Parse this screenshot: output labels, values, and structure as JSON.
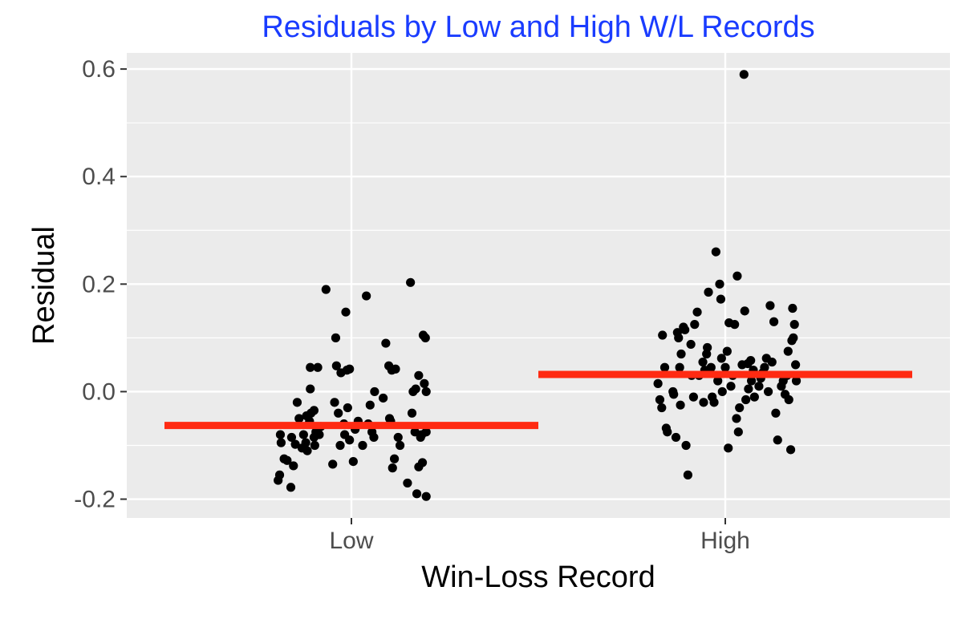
{
  "chart_data": {
    "type": "scatter",
    "title": "Residuals by Low and High W/L Records",
    "xlabel": "Win-Loss Record",
    "ylabel": "Residual",
    "categories": [
      "Low",
      "High"
    ],
    "ylim": [
      -0.235,
      0.63
    ],
    "y_ticks": [
      -0.2,
      0.0,
      0.2,
      0.4,
      0.6
    ],
    "y_tick_labels": [
      "-0.2",
      "0.0",
      "0.2",
      "0.4",
      "0.6"
    ],
    "grid": true,
    "colors": {
      "panel": "#ebebeb",
      "grid": "#ffffff",
      "point": "#000000",
      "mean_line": "#ff2a12",
      "title": "#1a3cff"
    },
    "series": [
      {
        "category": "Low",
        "points": [
          {
            "x": -0.196,
            "y": -0.165
          },
          {
            "x": -0.192,
            "y": -0.155
          },
          {
            "x": -0.19,
            "y": -0.08
          },
          {
            "x": -0.188,
            "y": -0.095
          },
          {
            "x": -0.18,
            "y": -0.125
          },
          {
            "x": -0.172,
            "y": -0.128
          },
          {
            "x": -0.162,
            "y": -0.178
          },
          {
            "x": -0.155,
            "y": -0.138
          },
          {
            "x": -0.16,
            "y": -0.085
          },
          {
            "x": -0.15,
            "y": -0.098
          },
          {
            "x": -0.145,
            "y": -0.02
          },
          {
            "x": -0.14,
            "y": -0.05
          },
          {
            "x": -0.132,
            "y": -0.105
          },
          {
            "x": -0.128,
            "y": -0.08
          },
          {
            "x": -0.122,
            "y": -0.095
          },
          {
            "x": -0.118,
            "y": -0.11
          },
          {
            "x": -0.12,
            "y": -0.045
          },
          {
            "x": -0.112,
            "y": -0.055
          },
          {
            "x": -0.11,
            "y": 0.005
          },
          {
            "x": -0.108,
            "y": -0.04
          },
          {
            "x": -0.11,
            "y": 0.045
          },
          {
            "x": -0.1,
            "y": -0.035
          },
          {
            "x": -0.1,
            "y": -0.085
          },
          {
            "x": -0.098,
            "y": -0.1
          },
          {
            "x": -0.095,
            "y": -0.075
          },
          {
            "x": -0.09,
            "y": 0.045
          },
          {
            "x": -0.086,
            "y": -0.08
          },
          {
            "x": -0.082,
            "y": -0.065
          },
          {
            "x": -0.068,
            "y": 0.19
          },
          {
            "x": -0.05,
            "y": -0.135
          },
          {
            "x": -0.045,
            "y": -0.02
          },
          {
            "x": -0.042,
            "y": 0.1
          },
          {
            "x": -0.04,
            "y": 0.048
          },
          {
            "x": -0.035,
            "y": -0.04
          },
          {
            "x": -0.03,
            "y": -0.1
          },
          {
            "x": -0.028,
            "y": 0.035
          },
          {
            "x": -0.02,
            "y": -0.06
          },
          {
            "x": -0.018,
            "y": -0.08
          },
          {
            "x": -0.015,
            "y": 0.148
          },
          {
            "x": -0.012,
            "y": 0.04
          },
          {
            "x": -0.01,
            "y": -0.03
          },
          {
            "x": -0.005,
            "y": 0.042
          },
          {
            "x": -0.005,
            "y": -0.09
          },
          {
            "x": 0.005,
            "y": -0.13
          },
          {
            "x": 0.01,
            "y": -0.07
          },
          {
            "x": 0.018,
            "y": -0.055
          },
          {
            "x": 0.03,
            "y": -0.1
          },
          {
            "x": 0.04,
            "y": 0.178
          },
          {
            "x": 0.045,
            "y": -0.06
          },
          {
            "x": 0.05,
            "y": -0.025
          },
          {
            "x": 0.055,
            "y": -0.075
          },
          {
            "x": 0.06,
            "y": -0.085
          },
          {
            "x": 0.062,
            "y": 0.0
          },
          {
            "x": 0.085,
            "y": -0.012
          },
          {
            "x": 0.092,
            "y": 0.09
          },
          {
            "x": 0.1,
            "y": 0.048
          },
          {
            "x": 0.102,
            "y": -0.05
          },
          {
            "x": 0.105,
            "y": -0.055
          },
          {
            "x": 0.108,
            "y": 0.04
          },
          {
            "x": 0.11,
            "y": -0.142
          },
          {
            "x": 0.115,
            "y": -0.125
          },
          {
            "x": 0.118,
            "y": 0.042
          },
          {
            "x": 0.125,
            "y": -0.085
          },
          {
            "x": 0.13,
            "y": -0.1
          },
          {
            "x": 0.15,
            "y": -0.17
          },
          {
            "x": 0.158,
            "y": 0.203
          },
          {
            "x": 0.162,
            "y": -0.04
          },
          {
            "x": 0.165,
            "y": 0.0
          },
          {
            "x": 0.17,
            "y": -0.075
          },
          {
            "x": 0.172,
            "y": 0.005
          },
          {
            "x": 0.175,
            "y": -0.19
          },
          {
            "x": 0.18,
            "y": 0.03
          },
          {
            "x": 0.18,
            "y": -0.14
          },
          {
            "x": 0.185,
            "y": -0.085
          },
          {
            "x": 0.188,
            "y": -0.08
          },
          {
            "x": 0.19,
            "y": -0.132
          },
          {
            "x": 0.192,
            "y": 0.105
          },
          {
            "x": 0.195,
            "y": 0.015
          },
          {
            "x": 0.198,
            "y": 0.1
          },
          {
            "x": 0.2,
            "y": -0.195
          },
          {
            "x": 0.2,
            "y": 0.0
          },
          {
            "x": 0.2,
            "y": -0.075
          }
        ]
      },
      {
        "category": "High",
        "points": [
          {
            "x": -0.18,
            "y": 0.015
          },
          {
            "x": -0.175,
            "y": -0.015
          },
          {
            "x": -0.17,
            "y": -0.03
          },
          {
            "x": -0.168,
            "y": 0.105
          },
          {
            "x": -0.162,
            "y": 0.045
          },
          {
            "x": -0.158,
            "y": -0.068
          },
          {
            "x": -0.155,
            "y": -0.075
          },
          {
            "x": -0.14,
            "y": 0.0
          },
          {
            "x": -0.138,
            "y": -0.005
          },
          {
            "x": -0.132,
            "y": -0.085
          },
          {
            "x": -0.128,
            "y": 0.11
          },
          {
            "x": -0.125,
            "y": 0.1
          },
          {
            "x": -0.122,
            "y": 0.045
          },
          {
            "x": -0.12,
            "y": -0.025
          },
          {
            "x": -0.118,
            "y": 0.07
          },
          {
            "x": -0.112,
            "y": 0.12
          },
          {
            "x": -0.108,
            "y": 0.115
          },
          {
            "x": -0.105,
            "y": -0.1
          },
          {
            "x": -0.1,
            "y": -0.155
          },
          {
            "x": -0.092,
            "y": 0.088
          },
          {
            "x": -0.09,
            "y": 0.03
          },
          {
            "x": -0.085,
            "y": -0.01
          },
          {
            "x": -0.082,
            "y": 0.125
          },
          {
            "x": -0.075,
            "y": 0.148
          },
          {
            "x": -0.07,
            "y": 0.03
          },
          {
            "x": -0.06,
            "y": 0.055
          },
          {
            "x": -0.058,
            "y": -0.02
          },
          {
            "x": -0.055,
            "y": 0.04
          },
          {
            "x": -0.05,
            "y": 0.07
          },
          {
            "x": -0.048,
            "y": 0.082
          },
          {
            "x": -0.045,
            "y": 0.185
          },
          {
            "x": -0.04,
            "y": 0.035
          },
          {
            "x": -0.038,
            "y": 0.045
          },
          {
            "x": -0.035,
            "y": -0.01
          },
          {
            "x": -0.03,
            "y": -0.02
          },
          {
            "x": -0.025,
            "y": 0.26
          },
          {
            "x": -0.02,
            "y": 0.02
          },
          {
            "x": -0.015,
            "y": 0.2
          },
          {
            "x": -0.012,
            "y": 0.172
          },
          {
            "x": -0.01,
            "y": 0.062
          },
          {
            "x": -0.008,
            "y": 0.0
          },
          {
            "x": 0.0,
            "y": 0.045
          },
          {
            "x": 0.005,
            "y": 0.075
          },
          {
            "x": 0.008,
            "y": -0.105
          },
          {
            "x": 0.01,
            "y": 0.128
          },
          {
            "x": 0.015,
            "y": 0.01
          },
          {
            "x": 0.02,
            "y": 0.03
          },
          {
            "x": 0.025,
            "y": 0.125
          },
          {
            "x": 0.03,
            "y": -0.05
          },
          {
            "x": 0.032,
            "y": 0.215
          },
          {
            "x": 0.035,
            "y": -0.075
          },
          {
            "x": 0.038,
            "y": -0.03
          },
          {
            "x": 0.045,
            "y": 0.05
          },
          {
            "x": 0.05,
            "y": 0.59
          },
          {
            "x": 0.052,
            "y": 0.15
          },
          {
            "x": 0.055,
            "y": -0.015
          },
          {
            "x": 0.06,
            "y": 0.052
          },
          {
            "x": 0.062,
            "y": 0.005
          },
          {
            "x": 0.068,
            "y": 0.058
          },
          {
            "x": 0.07,
            "y": 0.02
          },
          {
            "x": 0.075,
            "y": 0.04
          },
          {
            "x": 0.078,
            "y": -0.01
          },
          {
            "x": 0.09,
            "y": 0.01
          },
          {
            "x": 0.095,
            "y": 0.025
          },
          {
            "x": 0.1,
            "y": 0.035
          },
          {
            "x": 0.105,
            "y": 0.045
          },
          {
            "x": 0.11,
            "y": 0.062
          },
          {
            "x": 0.115,
            "y": 0.0
          },
          {
            "x": 0.12,
            "y": 0.16
          },
          {
            "x": 0.125,
            "y": 0.055
          },
          {
            "x": 0.13,
            "y": 0.13
          },
          {
            "x": 0.135,
            "y": -0.04
          },
          {
            "x": 0.14,
            "y": -0.09
          },
          {
            "x": 0.15,
            "y": 0.01
          },
          {
            "x": 0.155,
            "y": 0.02
          },
          {
            "x": 0.16,
            "y": -0.005
          },
          {
            "x": 0.165,
            "y": 0.03
          },
          {
            "x": 0.168,
            "y": 0.075
          },
          {
            "x": 0.17,
            "y": -0.015
          },
          {
            "x": 0.175,
            "y": -0.108
          },
          {
            "x": 0.178,
            "y": 0.095
          },
          {
            "x": 0.18,
            "y": 0.155
          },
          {
            "x": 0.182,
            "y": 0.1
          },
          {
            "x": 0.185,
            "y": 0.125
          },
          {
            "x": 0.188,
            "y": 0.05
          },
          {
            "x": 0.19,
            "y": 0.02
          }
        ]
      }
    ],
    "mean_lines": [
      {
        "category": "Low",
        "y": -0.063,
        "x_range": [
          -0.5,
          0.5
        ]
      },
      {
        "category": "High",
        "y": 0.032,
        "x_range": [
          -0.5,
          0.5
        ]
      }
    ]
  }
}
